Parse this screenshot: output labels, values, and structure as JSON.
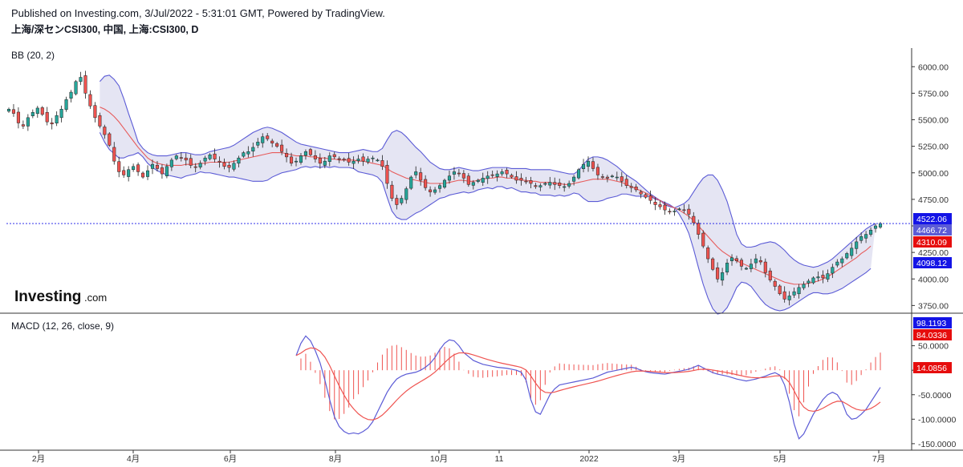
{
  "header": {
    "line1": "Published on Investing.com, 3/Jul/2022 - 5:31:01 GMT, Powered by TradingView.",
    "line2": "上海/深センCSI300, 中国, 上海:CSI300, D"
  },
  "logo": {
    "main": "Investing",
    "suffix": ".com"
  },
  "colors": {
    "up": "#26a69a",
    "down": "#ef5350",
    "bb_band": "#5b5bd6",
    "bb_fill": "#dcdcef",
    "bb_basis": "#e75b5b",
    "macd_line": "#5b5bd6",
    "signal_line": "#ef5350",
    "hist": "#ef5350",
    "tag_blue": "#1414e6",
    "tag_red": "#e60d0d",
    "tag_gray": "#5b5bd6"
  },
  "chart_data": [
    {
      "type": "candlestick",
      "indicator_label": "BB (20, 2)",
      "ylim": [
        3700,
        6100
      ],
      "yticks": [
        3750,
        4000,
        4250,
        4500,
        4750,
        5000,
        5250,
        5500,
        5750,
        6000
      ],
      "ytick_labels": [
        "3750.00",
        "4000.00",
        "4250.00",
        "4500.00",
        "4750.00",
        "5000.00",
        "5250.00",
        "5500.00",
        "5750.00",
        "6000.00"
      ],
      "xticks": [
        "2月",
        "4月",
        "6月",
        "8月",
        "10月",
        "11",
        "2022",
        "3月",
        "5月",
        "7月"
      ],
      "last_close": 4522.06,
      "price_tags": [
        {
          "label": "4522.06",
          "value": 4522.06,
          "color": "blue"
        },
        {
          "label": "4466.72",
          "value": 4466.72,
          "color": "gray"
        },
        {
          "label": "4310.09",
          "value": 4310.09,
          "color": "red"
        },
        {
          "label": "4098.12",
          "value": 4098.12,
          "color": "blue"
        }
      ],
      "close_series": [
        5600,
        5560,
        5470,
        5440,
        5520,
        5570,
        5610,
        5550,
        5480,
        5460,
        5540,
        5600,
        5690,
        5760,
        5860,
        5900,
        5750,
        5630,
        5520,
        5440,
        5360,
        5260,
        5110,
        5010,
        4980,
        5030,
        5060,
        5010,
        4960,
        5020,
        5080,
        5040,
        4990,
        5060,
        5120,
        5160,
        5140,
        5120,
        5070,
        5050,
        5090,
        5140,
        5170,
        5130,
        5100,
        5060,
        5050,
        5090,
        5140,
        5190,
        5200,
        5240,
        5290,
        5340,
        5320,
        5280,
        5250,
        5200,
        5150,
        5090,
        5110,
        5160,
        5200,
        5170,
        5130,
        5090,
        5110,
        5160,
        5150,
        5130,
        5120,
        5100,
        5110,
        5130,
        5110,
        5130,
        5140,
        5120,
        5060,
        4900,
        4760,
        4700,
        4760,
        4850,
        4960,
        5010,
        4930,
        4860,
        4820,
        4840,
        4880,
        4930,
        4970,
        5010,
        4990,
        4950,
        4890,
        4910,
        4930,
        4950,
        4970,
        4980,
        4990,
        5010,
        4990,
        4960,
        4930,
        4930,
        4920,
        4900,
        4870,
        4880,
        4900,
        4910,
        4890,
        4880,
        4870,
        4900,
        4960,
        5030,
        5080,
        5110,
        5040,
        4980,
        4960,
        4950,
        4970,
        4960,
        4920,
        4880,
        4860,
        4840,
        4800,
        4770,
        4740,
        4700,
        4680,
        4650,
        4630,
        4640,
        4660,
        4650,
        4610,
        4530,
        4420,
        4310,
        4190,
        4090,
        4000,
        4060,
        4150,
        4200,
        4170,
        4120,
        4100,
        4140,
        4190,
        4160,
        4060,
        3990,
        3930,
        3860,
        3810,
        3840,
        3880,
        3920,
        3950,
        3980,
        4010,
        4020,
        4010,
        4050,
        4110,
        4160,
        4190,
        4240,
        4290,
        4350,
        4400,
        4420,
        4460,
        4500,
        4522
      ],
      "bb_upper": [
        null,
        null,
        null,
        null,
        null,
        null,
        null,
        null,
        null,
        null,
        null,
        null,
        null,
        null,
        null,
        null,
        null,
        null,
        null,
        5860,
        5910,
        5920,
        5880,
        5820,
        5700,
        5560,
        5430,
        5290,
        5230,
        5190,
        5170,
        5160,
        5160,
        5160,
        5170,
        5180,
        5190,
        5190,
        5180,
        5170,
        5170,
        5180,
        5200,
        5210,
        5220,
        5230,
        5240,
        5260,
        5290,
        5320,
        5350,
        5380,
        5400,
        5420,
        5430,
        5420,
        5400,
        5380,
        5350,
        5320,
        5290,
        5270,
        5260,
        5250,
        5240,
        5230,
        5220,
        5210,
        5200,
        5190,
        5190,
        5190,
        5200,
        5210,
        5220,
        5210,
        5200,
        5200,
        5230,
        5310,
        5380,
        5400,
        5380,
        5340,
        5290,
        5240,
        5200,
        5150,
        5100,
        5070,
        5040,
        5030,
        5030,
        5040,
        5050,
        5040,
        5030,
        5020,
        5020,
        5030,
        5040,
        5050,
        5050,
        5050,
        5050,
        5040,
        5040,
        5040,
        5040,
        5030,
        5030,
        5030,
        5030,
        5030,
        5020,
        5010,
        5000,
        4990,
        4990,
        5020,
        5080,
        5130,
        5150,
        5150,
        5140,
        5120,
        5090,
        5060,
        5020,
        4980,
        4950,
        4920,
        4880,
        4840,
        4800,
        4770,
        4740,
        4700,
        4680,
        4670,
        4690,
        4710,
        4750,
        4820,
        4890,
        4950,
        4980,
        4980,
        4930,
        4840,
        4730,
        4580,
        4420,
        4330,
        4300,
        4300,
        4310,
        4330,
        4340,
        4350,
        4340,
        4310,
        4270,
        4220,
        4180,
        4150,
        4130,
        4120,
        4110,
        4120,
        4140,
        4160,
        4190,
        4230,
        4270,
        4310,
        4350,
        4390,
        4430,
        4470,
        4500,
        4522
      ],
      "bb_basis": [
        null,
        null,
        null,
        null,
        null,
        null,
        null,
        null,
        null,
        null,
        null,
        null,
        null,
        null,
        null,
        null,
        null,
        null,
        null,
        5620,
        5600,
        5570,
        5530,
        5480,
        5420,
        5360,
        5300,
        5240,
        5190,
        5140,
        5110,
        5090,
        5080,
        5070,
        5070,
        5070,
        5070,
        5080,
        5080,
        5080,
        5090,
        5090,
        5100,
        5100,
        5100,
        5100,
        5100,
        5110,
        5120,
        5130,
        5140,
        5150,
        5160,
        5170,
        5180,
        5190,
        5190,
        5190,
        5180,
        5170,
        5160,
        5160,
        5160,
        5150,
        5150,
        5140,
        5140,
        5130,
        5130,
        5120,
        5120,
        5120,
        5120,
        5110,
        5110,
        5100,
        5090,
        5080,
        5070,
        5040,
        5010,
        4990,
        4970,
        4950,
        4940,
        4930,
        4920,
        4910,
        4900,
        4900,
        4900,
        4900,
        4910,
        4920,
        4930,
        4930,
        4920,
        4920,
        4930,
        4940,
        4950,
        4950,
        4960,
        4960,
        4950,
        4950,
        4940,
        4930,
        4930,
        4920,
        4920,
        4910,
        4910,
        4910,
        4900,
        4900,
        4890,
        4890,
        4900,
        4910,
        4920,
        4930,
        4940,
        4940,
        4940,
        4940,
        4930,
        4920,
        4910,
        4890,
        4870,
        4850,
        4830,
        4810,
        4790,
        4760,
        4740,
        4710,
        4690,
        4670,
        4650,
        4620,
        4590,
        4550,
        4500,
        4450,
        4400,
        4350,
        4300,
        4260,
        4230,
        4200,
        4170,
        4150,
        4130,
        4110,
        4090,
        4070,
        4050,
        4030,
        4010,
        3990,
        3970,
        3960,
        3950,
        3950,
        3950,
        3960,
        3970,
        3980,
        4000,
        4020,
        4050,
        4080,
        4110,
        4140,
        4170,
        4200,
        4240,
        4270,
        4310
      ],
      "bb_lower": [
        null,
        null,
        null,
        null,
        null,
        null,
        null,
        null,
        null,
        null,
        null,
        null,
        null,
        null,
        null,
        null,
        null,
        null,
        null,
        5380,
        5290,
        5220,
        5180,
        5140,
        5140,
        5160,
        5170,
        5190,
        5150,
        5090,
        5050,
        5020,
        5000,
        4980,
        4970,
        4960,
        4950,
        4970,
        4980,
        4990,
        5010,
        5000,
        5000,
        4990,
        4980,
        4970,
        4960,
        4960,
        4950,
        4940,
        4930,
        4920,
        4920,
        4920,
        4930,
        4960,
        4980,
        5000,
        5010,
        5020,
        5030,
        5050,
        5060,
        5050,
        5060,
        5050,
        5060,
        5050,
        5060,
        5050,
        5050,
        5050,
        5040,
        5010,
        5000,
        4990,
        4980,
        4960,
        4910,
        4770,
        4640,
        4580,
        4560,
        4560,
        4590,
        4620,
        4640,
        4670,
        4700,
        4730,
        4760,
        4770,
        4790,
        4800,
        4810,
        4820,
        4810,
        4820,
        4840,
        4850,
        4860,
        4850,
        4870,
        4870,
        4850,
        4860,
        4840,
        4820,
        4820,
        4810,
        4810,
        4790,
        4790,
        4790,
        4780,
        4790,
        4780,
        4790,
        4810,
        4800,
        4760,
        4730,
        4730,
        4730,
        4740,
        4760,
        4770,
        4780,
        4800,
        4800,
        4790,
        4780,
        4780,
        4780,
        4780,
        4750,
        4740,
        4720,
        4700,
        4670,
        4610,
        4530,
        4430,
        4280,
        4110,
        3950,
        3820,
        3720,
        3670,
        3680,
        3730,
        3820,
        3920,
        3970,
        3960,
        3930,
        3870,
        3810,
        3760,
        3730,
        3710,
        3700,
        3710,
        3730,
        3760,
        3790,
        3820,
        3850,
        3870,
        3870,
        3860,
        3860,
        3870,
        3890,
        3910,
        3940,
        3970,
        4000,
        4030,
        4060,
        4098
      ]
    },
    {
      "type": "line+bar",
      "indicator_label": "MACD (12, 26, close, 9)",
      "ylim": [
        -160,
        105
      ],
      "yticks": [
        -150,
        -100,
        -50,
        0,
        50
      ],
      "ytick_labels": [
        "-150.0000",
        "-100.0000",
        "-50.0000",
        "0.0000",
        "50.0000"
      ],
      "value_tags": [
        {
          "label": "98.1193",
          "value": 98.1193,
          "color": "blue"
        },
        {
          "label": "84.0336",
          "value": 84.0336,
          "color": "red"
        },
        {
          "label": "14.0856",
          "value": 14.0856,
          "color": "red"
        }
      ],
      "macd": [
        null,
        null,
        null,
        null,
        null,
        null,
        null,
        null,
        null,
        null,
        null,
        null,
        null,
        null,
        null,
        null,
        null,
        null,
        null,
        null,
        null,
        null,
        null,
        null,
        null,
        null,
        null,
        null,
        null,
        null,
        null,
        null,
        null,
        null,
        null,
        null,
        null,
        null,
        null,
        null,
        null,
        null,
        null,
        null,
        null,
        null,
        null,
        null,
        null,
        null,
        null,
        null,
        null,
        null,
        null,
        null,
        null,
        null,
        null,
        null,
        30,
        55,
        70,
        60,
        40,
        15,
        -20,
        -60,
        -95,
        -115,
        -125,
        -130,
        -128,
        -130,
        -125,
        -118,
        -105,
        -85,
        -65,
        -45,
        -30,
        -18,
        -12,
        -8,
        -6,
        -4,
        0,
        6,
        14,
        26,
        42,
        55,
        62,
        60,
        50,
        36,
        28,
        20,
        16,
        12,
        10,
        8,
        6,
        5,
        4,
        2,
        0,
        -4,
        -20,
        -60,
        -85,
        -90,
        -70,
        -50,
        -38,
        -30,
        -28,
        -26,
        -24,
        -22,
        -20,
        -18,
        -16,
        -12,
        -8,
        -4,
        -2,
        0,
        2,
        4,
        6,
        4,
        0,
        -3,
        -5,
        -6,
        -7,
        -8,
        -6,
        -4,
        -2,
        0,
        2,
        6,
        10,
        5,
        0,
        -5,
        -8,
        -10,
        -12,
        -15,
        -18,
        -20,
        -22,
        -20,
        -18,
        -15,
        -12,
        -8,
        -5,
        -10,
        -30,
        -65,
        -110,
        -140,
        -130,
        -110,
        -90,
        -75,
        -60,
        -50,
        -45,
        -50,
        -65,
        -90,
        -100,
        -98,
        -90,
        -80,
        -65,
        -50,
        -35,
        -20,
        -5,
        10,
        25,
        40,
        55,
        70,
        85,
        98
      ],
      "signal": [
        null,
        null,
        null,
        null,
        null,
        null,
        null,
        null,
        null,
        null,
        null,
        null,
        null,
        null,
        null,
        null,
        null,
        null,
        null,
        null,
        null,
        null,
        null,
        null,
        null,
        null,
        null,
        null,
        null,
        null,
        null,
        null,
        null,
        null,
        null,
        null,
        null,
        null,
        null,
        null,
        null,
        null,
        null,
        null,
        null,
        null,
        null,
        null,
        null,
        null,
        null,
        null,
        null,
        null,
        null,
        null,
        null,
        null,
        null,
        null,
        null,
        null,
        null,
        null,
        null,
        null,
        null,
        null,
        null,
        null,
        null,
        null,
        null,
        null,
        null,
        null,
        null,
        null,
        null,
        null,
        null,
        null,
        null,
        null,
        null,
        null,
        null,
        null,
        null,
        null,
        null,
        null,
        null,
        null,
        null,
        null,
        null,
        null,
        null,
        null,
        null,
        null,
        null,
        null,
        null,
        null,
        null,
        null,
        null,
        null,
        null,
        null,
        null,
        null,
        null,
        null,
        null,
        null,
        null,
        null,
        null,
        null,
        null,
        null,
        null,
        null,
        null,
        null,
        null,
        null,
        null,
        null,
        null,
        null,
        null,
        null,
        null,
        null,
        null,
        null,
        null,
        null,
        null,
        null,
        null,
        null,
        null,
        null,
        null,
        null,
        null,
        null,
        null,
        null,
        null,
        null,
        null,
        null,
        null,
        null,
        null,
        null,
        null,
        null,
        null,
        null,
        null,
        null,
        null,
        null,
        null,
        null,
        null,
        null,
        null,
        null,
        null,
        null,
        null,
        null,
        null,
        null,
        null,
        null,
        84
      ],
      "histogram": [
        null
      ]
    }
  ]
}
